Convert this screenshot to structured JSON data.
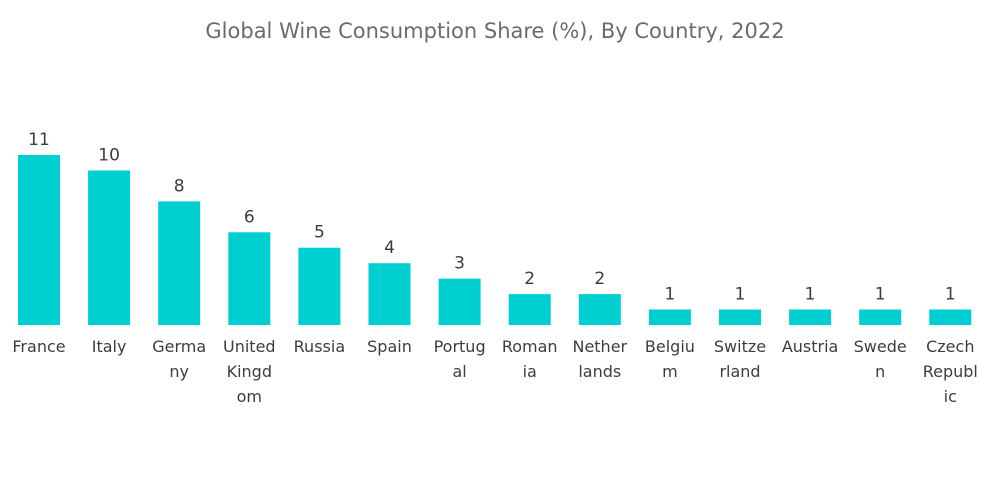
{
  "chart_data": {
    "type": "bar",
    "title": "Global Wine Consumption Share (%), By Country, 2022",
    "xlabel": "",
    "ylabel": "",
    "categories": [
      "France",
      "Italy",
      "Germany",
      "United Kingdom",
      "Russia",
      "Spain",
      "Portugal",
      "Romania",
      "Netherlands",
      "Belgium",
      "Switzerland",
      "Austria",
      "Sweden",
      "Czech Republic"
    ],
    "category_lines": [
      [
        "France"
      ],
      [
        "Italy"
      ],
      [
        "Germa",
        "ny"
      ],
      [
        "United",
        "Kingd",
        "om"
      ],
      [
        "Russia"
      ],
      [
        "Spain"
      ],
      [
        "Portug",
        "al"
      ],
      [
        "Roman",
        "ia"
      ],
      [
        "Nether",
        "lands"
      ],
      [
        "Belgiu",
        "m"
      ],
      [
        "Switze",
        "rland"
      ],
      [
        "Austria"
      ],
      [
        "Swede",
        "n"
      ],
      [
        "Czech",
        "Republ",
        "ic"
      ]
    ],
    "values": [
      11,
      10,
      8,
      6,
      5,
      4,
      3,
      2,
      2,
      1,
      1,
      1,
      1,
      1
    ],
    "ylim": [
      0,
      11
    ],
    "grid": false,
    "legend": "none",
    "bar_color": "#00CFD1"
  }
}
